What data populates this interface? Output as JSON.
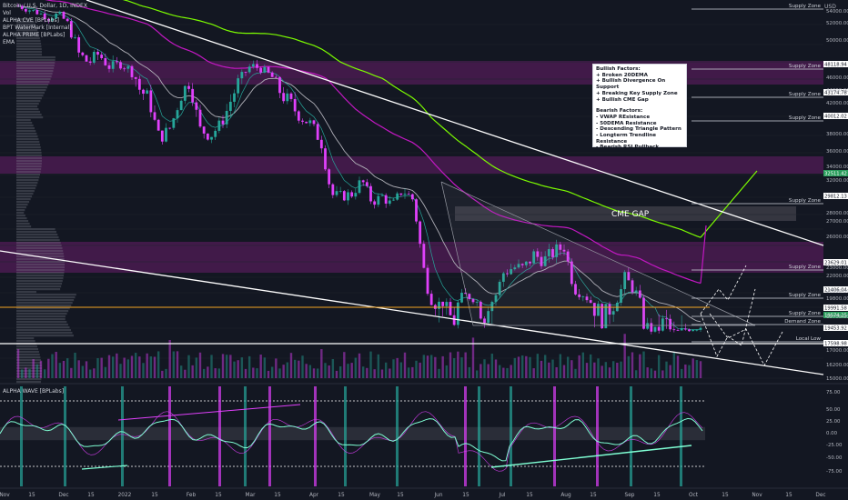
{
  "legend": {
    "symbol": "Bitcoin / U.S. Dollar, 1D, INDEX",
    "indicators": [
      "Vol",
      "ALPHA CVE [BPLabs]",
      "BPT WaterMark [Internal]",
      "ALPHA PRIME [BPLabs]",
      "EMA"
    ]
  },
  "oscillator_title": "ALPHA WAVE [BPLabs]",
  "notes": {
    "bullish_title": "Bullish Factors:",
    "bullish": [
      "+ Broken 20DEMA",
      "+ Bullish Divergence On Support",
      "+ Breaking Key Supply Zone",
      "+ Bullish CME Gap"
    ],
    "bearish_title": "Bearish Factors:",
    "bearish": [
      "- VWAP REsistance",
      "- 50DEMA Resistance",
      "- Descending Triangle Pattern",
      "- Longterm Trendline Resistance",
      "- Bearish RSI Pullback"
    ]
  },
  "colors": {
    "background": "#131722",
    "up": "#26a69a",
    "down": "#e040fb",
    "ema_green": "#7cfc00",
    "ema_magenta": "#c218c2",
    "zone": "#7a1f7a",
    "label_bg": "#ffffff",
    "highlight_label": "#2a9d5c"
  },
  "chart_data": {
    "type": "candlestick",
    "currency_label": "USD",
    "y_axis": {
      "scale": "log",
      "ticks": [
        54000,
        52000,
        50000,
        46000,
        44000,
        42000,
        38000,
        36000,
        34000,
        32000,
        28000,
        27000,
        26000,
        23000,
        22000,
        20800,
        19800,
        18700,
        17000,
        16200,
        15000
      ]
    },
    "x_axis_labels": [
      "Nov",
      "15",
      "Dec",
      "15",
      "2022",
      "15",
      "Feb",
      "15",
      "Mar",
      "15",
      "Apr",
      "15",
      "May",
      "15",
      "Jun",
      "15",
      "Jul",
      "15",
      "Aug",
      "15",
      "Sep",
      "15",
      "Oct",
      "15",
      "Nov",
      "15",
      "Dec"
    ],
    "price_path": [
      [
        0,
        60800
      ],
      [
        8,
        59500
      ],
      [
        16,
        58200
      ],
      [
        24,
        56400
      ],
      [
        32,
        57800
      ],
      [
        40,
        54100
      ],
      [
        48,
        49200
      ],
      [
        56,
        47800
      ],
      [
        64,
        49300
      ],
      [
        72,
        46800
      ],
      [
        80,
        47600
      ],
      [
        88,
        46300
      ],
      [
        96,
        42900
      ],
      [
        104,
        41700
      ],
      [
        112,
        36900
      ],
      [
        120,
        38400
      ],
      [
        128,
        42100
      ],
      [
        136,
        43900
      ],
      [
        144,
        38200
      ],
      [
        152,
        37300
      ],
      [
        160,
        38900
      ],
      [
        168,
        41600
      ],
      [
        176,
        44300
      ],
      [
        184,
        47100
      ],
      [
        192,
        46400
      ],
      [
        200,
        44700
      ],
      [
        208,
        42400
      ],
      [
        216,
        41200
      ],
      [
        224,
        39800
      ],
      [
        232,
        38900
      ],
      [
        240,
        36300
      ],
      [
        248,
        30100
      ],
      [
        256,
        29900
      ],
      [
        264,
        30200
      ],
      [
        272,
        31800
      ],
      [
        280,
        29200
      ],
      [
        288,
        29900
      ],
      [
        296,
        28800
      ],
      [
        304,
        30700
      ],
      [
        312,
        29600
      ],
      [
        320,
        23400
      ],
      [
        328,
        20300
      ],
      [
        336,
        20400
      ],
      [
        344,
        19500
      ],
      [
        352,
        21200
      ],
      [
        360,
        20900
      ],
      [
        368,
        19800
      ],
      [
        376,
        20700
      ],
      [
        384,
        22800
      ],
      [
        392,
        23200
      ],
      [
        400,
        23100
      ],
      [
        408,
        24100
      ],
      [
        416,
        23700
      ],
      [
        424,
        24300
      ],
      [
        432,
        24700
      ],
      [
        440,
        21700
      ],
      [
        448,
        21200
      ],
      [
        456,
        20100
      ],
      [
        464,
        19800
      ],
      [
        472,
        20300
      ],
      [
        480,
        22400
      ],
      [
        488,
        21600
      ],
      [
        496,
        19400
      ],
      [
        504,
        19100
      ],
      [
        512,
        19600
      ],
      [
        520,
        18900
      ],
      [
        528,
        19300
      ],
      [
        536,
        19500
      ],
      [
        540,
        19600
      ]
    ],
    "zones": [
      {
        "label": "Supply Zone",
        "price": 59000
      },
      {
        "label": "Supply Zone",
        "price": 48118.94
      },
      {
        "label": "Supply Zone",
        "price": 43174.78
      },
      {
        "label": "Supply Zone",
        "price": 40012.02
      },
      {
        "label": "Supply Zone",
        "price": 29812.13
      },
      {
        "label": "Supply Zone",
        "price": 23629.01
      },
      {
        "label": "Supply Zone",
        "price": 21406.04
      },
      {
        "label": "Supply Zone",
        "price": 19991.58
      },
      {
        "label": "Demand Zone",
        "price": 19453.92
      },
      {
        "label": "Local Low",
        "price": 17598.98
      }
    ],
    "price_labels": [
      "48118.94",
      "43174.78",
      "40012.02",
      "32511.42",
      "29812.13",
      "23629.01",
      "21406.04",
      "19991.58",
      "19574.25",
      "19453.92",
      "17598.98"
    ],
    "annotation": "CME GAP",
    "oscillator": {
      "name": "ALPHA WAVE [BPLabs]",
      "ticks": [
        75,
        50,
        25,
        0,
        -25,
        -50,
        -75
      ]
    }
  }
}
